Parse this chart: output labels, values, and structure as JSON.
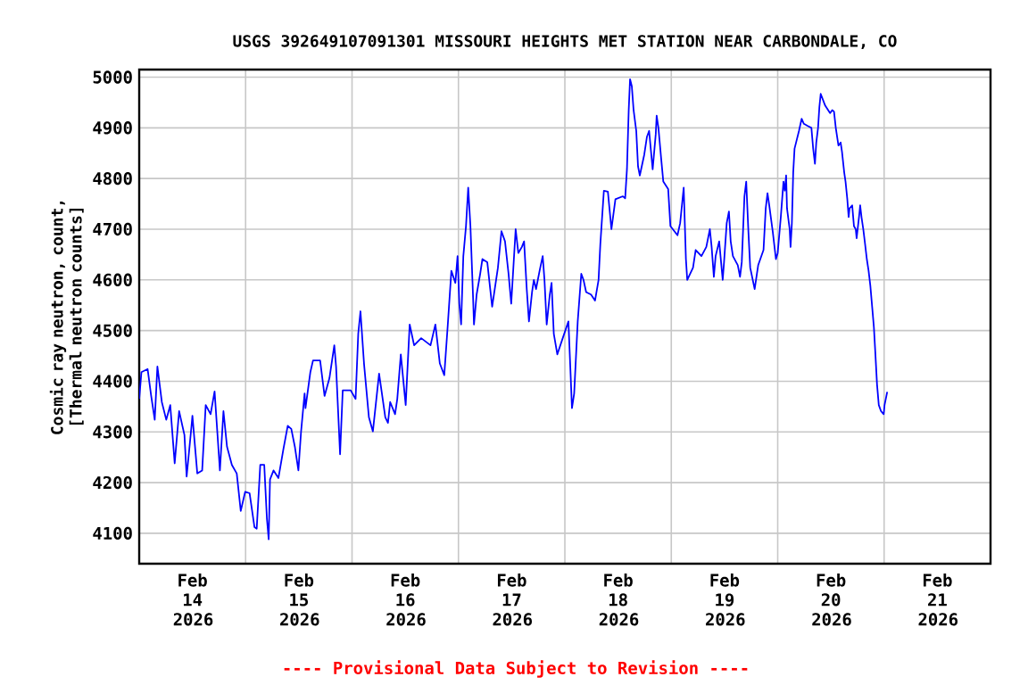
{
  "chart_data": {
    "type": "line",
    "title": "USGS 392649107091301 MISSOURI HEIGHTS MET STATION NEAR CARBONDALE, CO",
    "ylabel": "Cosmic ray neutron, count, [Thermal neutron counts]",
    "annotations": [
      "---- Provisional Data Subject to Revision ----"
    ],
    "xlim": [
      "2026-02-14T00:00",
      "2026-02-22T00:00"
    ],
    "ylim": [
      4040,
      5015
    ],
    "xticks": [
      {
        "value": "2026-02-14T00:00",
        "label": null
      },
      {
        "value": "2026-02-14T12:00",
        "label": "Feb 14 2026"
      },
      {
        "value": "2026-02-15T00:00",
        "label": null
      },
      {
        "value": "2026-02-15T12:00",
        "label": "Feb 15 2026"
      },
      {
        "value": "2026-02-16T00:00",
        "label": null
      },
      {
        "value": "2026-02-16T12:00",
        "label": "Feb 16 2026"
      },
      {
        "value": "2026-02-17T00:00",
        "label": null
      },
      {
        "value": "2026-02-17T12:00",
        "label": "Feb 17 2026"
      },
      {
        "value": "2026-02-18T00:00",
        "label": null
      },
      {
        "value": "2026-02-18T12:00",
        "label": "Feb 18 2026"
      },
      {
        "value": "2026-02-19T00:00",
        "label": null
      },
      {
        "value": "2026-02-19T12:00",
        "label": "Feb 19 2026"
      },
      {
        "value": "2026-02-20T00:00",
        "label": null
      },
      {
        "value": "2026-02-20T12:00",
        "label": "Feb 20 2026"
      },
      {
        "value": "2026-02-21T00:00",
        "label": null
      },
      {
        "value": "2026-02-21T12:00",
        "label": "Feb 21 2026"
      },
      {
        "value": "2026-02-22T00:00",
        "label": null
      }
    ],
    "yticks": [
      4100,
      4200,
      4300,
      4400,
      4500,
      4600,
      4700,
      4800,
      4900,
      5000
    ],
    "grid": true,
    "marker": "none",
    "line_style": "solid",
    "series": [
      {
        "color": "#0000ff",
        "x": [
          "2026-02-14T00:00",
          "2026-02-14T00:30",
          "2026-02-14T01:54",
          "2026-02-14T02:42",
          "2026-02-14T03:30",
          "2026-02-14T04:06",
          "2026-02-14T05:06",
          "2026-02-14T06:06",
          "2026-02-14T07:00",
          "2026-02-14T08:00",
          "2026-02-14T09:00",
          "2026-02-14T10:12",
          "2026-02-14T10:42",
          "2026-02-14T11:48",
          "2026-02-14T12:00",
          "2026-02-14T13:06",
          "2026-02-14T14:12",
          "2026-02-14T15:00",
          "2026-02-14T16:06",
          "2026-02-14T17:00",
          "2026-02-14T18:12",
          "2026-02-14T19:00",
          "2026-02-14T19:48",
          "2026-02-14T20:54",
          "2026-02-14T22:00",
          "2026-02-14T22:54",
          "2026-02-14T23:54",
          "2026-02-15T00:54",
          "2026-02-15T02:00",
          "2026-02-15T02:30",
          "2026-02-15T03:18",
          "2026-02-15T04:12",
          "2026-02-15T04:48",
          "2026-02-15T05:12",
          "2026-02-15T05:30",
          "2026-02-15T06:18",
          "2026-02-15T07:24",
          "2026-02-15T08:30",
          "2026-02-15T09:30",
          "2026-02-15T10:18",
          "2026-02-15T11:06",
          "2026-02-15T11:54",
          "2026-02-15T12:30",
          "2026-02-15T13:18",
          "2026-02-15T13:30",
          "2026-02-15T14:36",
          "2026-02-15T15:12",
          "2026-02-15T16:48",
          "2026-02-15T17:48",
          "2026-02-15T18:54",
          "2026-02-15T20:00",
          "2026-02-15T20:24",
          "2026-02-15T21:18",
          "2026-02-15T21:54",
          "2026-02-15T23:42",
          "2026-02-16T00:48",
          "2026-02-16T01:24",
          "2026-02-16T01:54",
          "2026-02-16T02:42",
          "2026-02-16T03:48",
          "2026-02-16T04:42",
          "2026-02-16T06:06",
          "2026-02-16T07:30",
          "2026-02-16T08:06",
          "2026-02-16T08:36",
          "2026-02-16T09:42",
          "2026-02-16T10:12",
          "2026-02-16T11:00",
          "2026-02-16T12:06",
          "2026-02-16T13:00",
          "2026-02-16T14:00",
          "2026-02-16T15:36",
          "2026-02-16T17:42",
          "2026-02-16T18:48",
          "2026-02-16T19:48",
          "2026-02-16T20:48",
          "2026-02-16T21:36",
          "2026-02-16T22:24",
          "2026-02-16T23:18",
          "2026-02-16T23:48",
          "2026-02-17T00:12",
          "2026-02-17T00:36",
          "2026-02-17T01:06",
          "2026-02-17T01:42",
          "2026-02-17T02:12",
          "2026-02-17T02:42",
          "2026-02-17T03:18",
          "2026-02-17T03:30",
          "2026-02-17T04:06",
          "2026-02-17T04:54",
          "2026-02-17T05:24",
          "2026-02-17T06:30",
          "2026-02-17T07:36",
          "2026-02-17T08:54",
          "2026-02-17T09:42",
          "2026-02-17T10:30",
          "2026-02-17T11:18",
          "2026-02-17T11:54",
          "2026-02-17T12:54",
          "2026-02-17T13:30",
          "2026-02-17T14:18",
          "2026-02-17T14:48",
          "2026-02-17T15:24",
          "2026-02-17T15:54",
          "2026-02-17T16:36",
          "2026-02-17T17:00",
          "2026-02-17T17:30",
          "2026-02-17T18:18",
          "2026-02-17T19:00",
          "2026-02-17T19:24",
          "2026-02-17T19:54",
          "2026-02-17T20:36",
          "2026-02-17T21:00",
          "2026-02-17T21:30",
          "2026-02-17T22:18",
          "2026-02-17T23:24",
          "2026-02-18T00:48",
          "2026-02-18T01:18",
          "2026-02-18T01:36",
          "2026-02-18T02:06",
          "2026-02-18T02:54",
          "2026-02-18T03:42",
          "2026-02-18T04:12",
          "2026-02-18T04:48",
          "2026-02-18T05:54",
          "2026-02-18T06:48",
          "2026-02-18T07:36",
          "2026-02-18T08:00",
          "2026-02-18T08:48",
          "2026-02-18T09:42",
          "2026-02-18T10:30",
          "2026-02-18T11:24",
          "2026-02-18T13:06",
          "2026-02-18T13:36",
          "2026-02-18T14:00",
          "2026-02-18T14:24",
          "2026-02-18T14:42",
          "2026-02-18T15:06",
          "2026-02-18T15:30",
          "2026-02-18T16:06",
          "2026-02-18T16:30",
          "2026-02-18T16:54",
          "2026-02-18T17:54",
          "2026-02-18T18:30",
          "2026-02-18T19:00",
          "2026-02-18T19:48",
          "2026-02-18T20:30",
          "2026-02-18T20:42",
          "2026-02-18T21:06",
          "2026-02-18T21:42",
          "2026-02-18T22:12",
          "2026-02-18T23:18",
          "2026-02-18T23:48",
          "2026-02-19T01:24",
          "2026-02-19T02:00",
          "2026-02-19T02:48",
          "2026-02-19T03:18",
          "2026-02-19T03:36",
          "2026-02-19T04:54",
          "2026-02-19T05:30",
          "2026-02-19T06:48",
          "2026-02-19T07:54",
          "2026-02-19T08:42",
          "2026-02-19T09:06",
          "2026-02-19T09:36",
          "2026-02-19T10:00",
          "2026-02-19T10:48",
          "2026-02-19T11:36",
          "2026-02-19T11:54",
          "2026-02-19T12:30",
          "2026-02-19T13:00",
          "2026-02-19T13:24",
          "2026-02-19T13:54",
          "2026-02-19T15:00",
          "2026-02-19T15:30",
          "2026-02-19T15:54",
          "2026-02-19T16:30",
          "2026-02-19T16:54",
          "2026-02-19T17:24",
          "2026-02-19T17:48",
          "2026-02-19T18:48",
          "2026-02-19T19:36",
          "2026-02-19T20:48",
          "2026-02-19T21:18",
          "2026-02-19T21:42",
          "2026-02-19T22:06",
          "2026-02-19T22:54",
          "2026-02-19T23:36",
          "2026-02-20T00:00",
          "2026-02-20T00:42",
          "2026-02-20T01:18",
          "2026-02-20T01:36",
          "2026-02-20T01:54",
          "2026-02-20T02:06",
          "2026-02-20T02:42",
          "2026-02-20T02:54",
          "2026-02-20T03:12",
          "2026-02-20T03:30",
          "2026-02-20T03:48",
          "2026-02-20T04:48",
          "2026-02-20T05:24",
          "2026-02-20T05:54",
          "2026-02-20T06:42",
          "2026-02-20T07:36",
          "2026-02-20T08:00",
          "2026-02-20T08:24",
          "2026-02-20T08:42",
          "2026-02-20T09:06",
          "2026-02-20T09:24",
          "2026-02-20T09:42",
          "2026-02-20T10:42",
          "2026-02-20T11:48",
          "2026-02-20T12:18",
          "2026-02-20T12:42",
          "2026-02-20T13:06",
          "2026-02-20T13:42",
          "2026-02-20T14:12",
          "2026-02-20T14:30",
          "2026-02-20T15:00",
          "2026-02-20T15:18",
          "2026-02-20T15:42",
          "2026-02-20T16:00",
          "2026-02-20T16:12",
          "2026-02-20T16:48",
          "2026-02-20T17:12",
          "2026-02-20T17:36",
          "2026-02-20T17:48",
          "2026-02-20T18:24",
          "2026-02-20T18:36",
          "2026-02-20T18:54",
          "2026-02-20T19:18",
          "2026-02-20T19:42",
          "2026-02-20T20:06",
          "2026-02-20T20:30",
          "2026-02-20T20:54",
          "2026-02-20T21:18",
          "2026-02-20T21:42",
          "2026-02-20T22:00",
          "2026-02-20T22:24",
          "2026-02-20T22:48",
          "2026-02-20T23:18",
          "2026-02-20T23:54",
          "2026-02-21T00:06",
          "2026-02-21T00:42"
        ],
        "values": [
          4365,
          4418,
          4424,
          4371,
          4324,
          4429,
          4359,
          4324,
          4353,
          4238,
          4341,
          4294,
          4212,
          4312,
          4332,
          4218,
          4224,
          4353,
          4335,
          4380,
          4224,
          4341,
          4271,
          4235,
          4218,
          4144,
          4182,
          4179,
          4112,
          4109,
          4235,
          4235,
          4129,
          4088,
          4206,
          4224,
          4209,
          4265,
          4312,
          4306,
          4271,
          4224,
          4300,
          4376,
          4347,
          4418,
          4441,
          4441,
          4371,
          4406,
          4471,
          4429,
          4256,
          4382,
          4382,
          4365,
          4494,
          4538,
          4435,
          4329,
          4301,
          4415,
          4329,
          4318,
          4359,
          4335,
          4365,
          4453,
          4353,
          4512,
          4471,
          4485,
          4471,
          4512,
          4435,
          4412,
          4512,
          4618,
          4594,
          4647,
          4553,
          4512,
          4647,
          4706,
          4782,
          4706,
          4565,
          4512,
          4571,
          4612,
          4641,
          4635,
          4547,
          4624,
          4696,
          4676,
          4612,
          4553,
          4700,
          4653,
          4665,
          4676,
          4582,
          4518,
          4576,
          4600,
          4582,
          4618,
          4647,
          4600,
          4512,
          4571,
          4594,
          4494,
          4453,
          4482,
          4518,
          4412,
          4347,
          4376,
          4518,
          4612,
          4600,
          4576,
          4571,
          4559,
          4600,
          4671,
          4776,
          4774,
          4700,
          4759,
          4765,
          4761,
          4818,
          4935,
          4996,
          4982,
          4935,
          4894,
          4824,
          4806,
          4847,
          4882,
          4894,
          4818,
          4888,
          4924,
          4900,
          4841,
          4794,
          4779,
          4706,
          4688,
          4712,
          4782,
          4641,
          4600,
          4624,
          4659,
          4647,
          4665,
          4700,
          4665,
          4606,
          4647,
          4676,
          4600,
          4635,
          4712,
          4735,
          4676,
          4647,
          4629,
          4606,
          4635,
          4765,
          4794,
          4694,
          4624,
          4582,
          4629,
          4659,
          4741,
          4771,
          4747,
          4694,
          4641,
          4653,
          4724,
          4794,
          4776,
          4806,
          4741,
          4700,
          4665,
          4712,
          4812,
          4859,
          4894,
          4918,
          4908,
          4904,
          4900,
          4859,
          4829,
          4871,
          4900,
          4941,
          4967,
          4944,
          4929,
          4935,
          4932,
          4900,
          4865,
          4871,
          4853,
          4812,
          4794,
          4759,
          4724,
          4741,
          4747,
          4706,
          4700,
          4682,
          4729,
          4747,
          4724,
          4700,
          4671,
          4641,
          4618,
          4588,
          4547,
          4506,
          4459,
          4394,
          4353,
          4341,
          4335,
          4353,
          4379
        ]
      }
    ]
  }
}
